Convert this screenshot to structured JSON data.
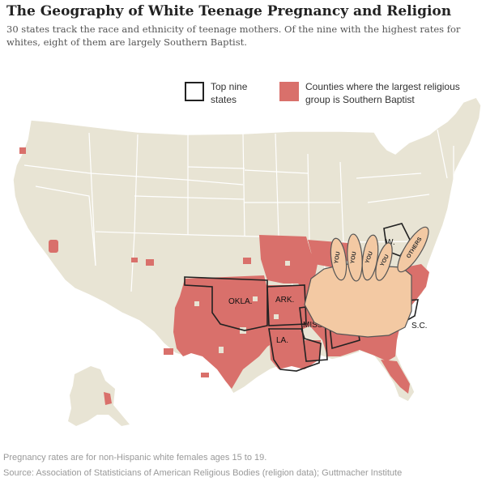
{
  "header": {
    "title": "The Geography of White Teenage Pregnancy and Religion",
    "subtitle": "30 states track the race and ethnicity of teenage mothers. Of the nine with the highest rates for whites, eight of them are largely Southern Baptist."
  },
  "legend": {
    "outline_label": "Top nine states",
    "fill_label": "Counties where the largest religious group is Southern Baptist"
  },
  "states": {
    "oklahoma": "OKLA.",
    "arkansas": "ARK.",
    "louisiana": "LA.",
    "mississippi": "MISS.",
    "west_virginia": "W.",
    "south_carolina": "S.C."
  },
  "glove": {
    "finger_1": "YOU",
    "finger_2": "YOU",
    "finger_3": "YOU",
    "finger_4": "YOU",
    "thumb": "OTHERS"
  },
  "footer": {
    "note": "Pregnancy rates are for non-Hispanic white females ages 15 to 19.",
    "source": "Source: Association of Statisticians of American Religious Bodies (religion data); Guttmacher Institute"
  },
  "colors": {
    "land": "#e8e4d4",
    "border": "#ffffff",
    "baptist": "#d9706b",
    "outline": "#222222",
    "glove": "#f3c9a3"
  }
}
